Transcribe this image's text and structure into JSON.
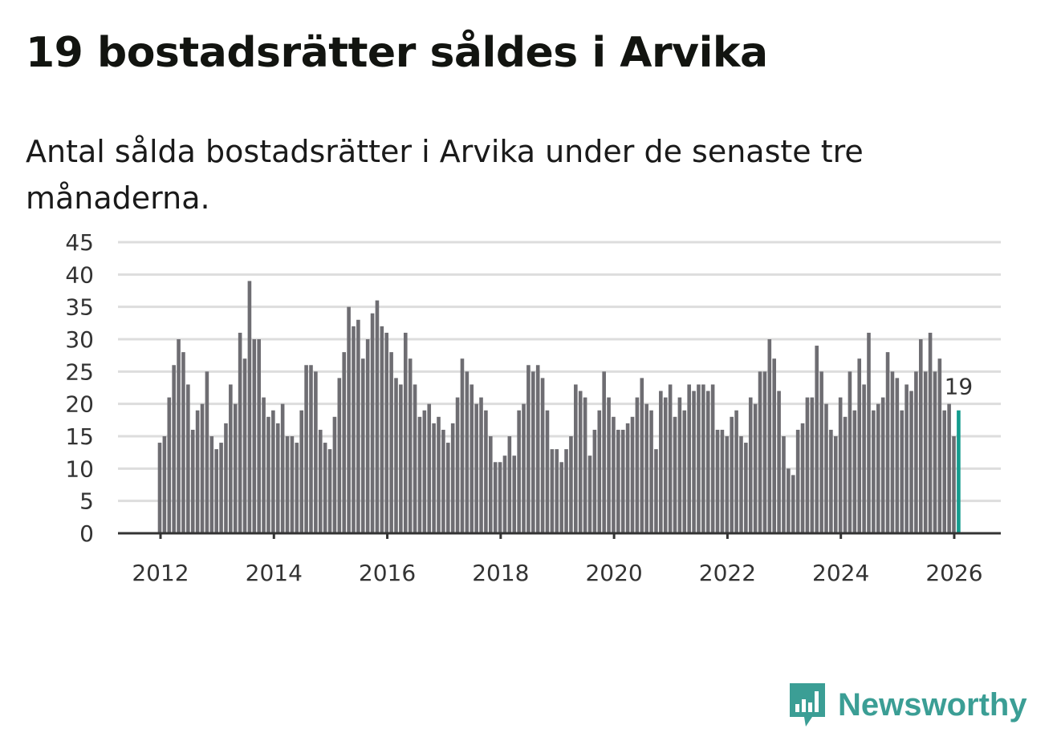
{
  "title": "19 bostadsrätter såldes i Arvika",
  "subtitle": "Antal sålda bostadsrätter i Arvika under de senaste tre månaderna.",
  "logo": {
    "text": "Newsworthy",
    "icon": "newsworthy-bar-chart-icon"
  },
  "colors": {
    "bar": "#6e6d72",
    "highlight": "#139c8e",
    "grid": "#dddddd",
    "logo": "#3b9e95"
  },
  "chart_data": {
    "type": "bar",
    "title": "19 bostadsrätter såldes i Arvika",
    "xlabel": "",
    "ylabel": "",
    "ylim": [
      0,
      45
    ],
    "yticks": [
      0,
      5,
      10,
      15,
      20,
      25,
      30,
      35,
      40,
      45
    ],
    "xticks": [
      "2012",
      "2014",
      "2016",
      "2018",
      "2020",
      "2022",
      "2024",
      "2026"
    ],
    "start": "2012-01",
    "frequency": "monthly",
    "grid": true,
    "highlight_label": "19",
    "values": [
      14,
      15,
      21,
      26,
      30,
      28,
      23,
      16,
      19,
      20,
      25,
      15,
      13,
      14,
      17,
      23,
      20,
      31,
      27,
      39,
      30,
      30,
      21,
      18,
      19,
      17,
      20,
      15,
      15,
      14,
      19,
      26,
      26,
      25,
      16,
      14,
      13,
      18,
      24,
      28,
      35,
      32,
      33,
      27,
      30,
      34,
      36,
      32,
      31,
      28,
      24,
      23,
      31,
      27,
      23,
      18,
      19,
      20,
      17,
      18,
      16,
      14,
      17,
      21,
      27,
      25,
      23,
      20,
      21,
      19,
      15,
      11,
      11,
      12,
      15,
      12,
      19,
      20,
      26,
      25,
      26,
      24,
      19,
      13,
      13,
      11,
      13,
      15,
      23,
      22,
      21,
      12,
      16,
      19,
      25,
      21,
      18,
      16,
      16,
      17,
      18,
      21,
      24,
      20,
      19,
      13,
      22,
      21,
      23,
      18,
      21,
      19,
      23,
      22,
      23,
      23,
      22,
      23,
      16,
      16,
      15,
      18,
      19,
      15,
      14,
      21,
      20,
      25,
      25,
      30,
      27,
      22,
      15,
      10,
      9,
      16,
      17,
      21,
      21,
      29,
      25,
      20,
      16,
      15,
      21,
      18,
      25,
      19,
      27,
      23,
      31,
      19,
      20,
      21,
      28,
      25,
      24,
      19,
      23,
      22,
      25,
      30,
      25,
      31,
      25,
      27,
      19,
      20,
      15,
      19
    ]
  }
}
